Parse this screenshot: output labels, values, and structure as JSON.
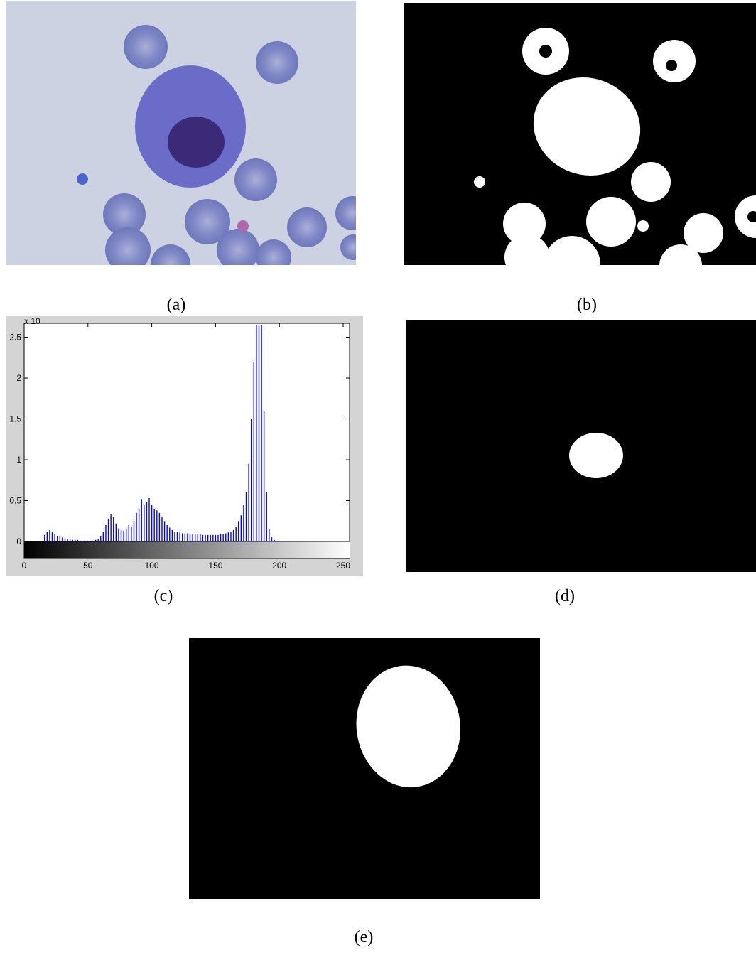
{
  "panels": [
    {
      "label": "(a)"
    },
    {
      "label": "(b)"
    },
    {
      "label": "(c)"
    },
    {
      "label": "(d)"
    },
    {
      "label": "(e)"
    }
  ],
  "chart_data": {
    "type": "histogram-stem",
    "color": "#0000ff",
    "y_exponent_label": "x 10",
    "xlim": [
      0,
      255
    ],
    "ylim": [
      -0.2,
      2.67
    ],
    "xticks": [
      0,
      50,
      100,
      150,
      200,
      250
    ],
    "yticks": [
      0,
      0.5,
      1,
      1.5,
      2,
      2.5
    ],
    "x": [
      16,
      18,
      20,
      22,
      24,
      26,
      28,
      30,
      32,
      34,
      36,
      38,
      40,
      42,
      44,
      46,
      48,
      50,
      52,
      54,
      56,
      58,
      60,
      62,
      64,
      66,
      68,
      70,
      72,
      74,
      76,
      78,
      80,
      82,
      84,
      86,
      88,
      90,
      92,
      94,
      96,
      98,
      100,
      102,
      104,
      106,
      108,
      110,
      112,
      114,
      116,
      118,
      120,
      122,
      124,
      126,
      128,
      130,
      132,
      134,
      136,
      138,
      140,
      142,
      144,
      146,
      148,
      150,
      152,
      154,
      156,
      158,
      160,
      162,
      164,
      166,
      168,
      170,
      172,
      174,
      176,
      178,
      180,
      182,
      184,
      186,
      188,
      190,
      192,
      194,
      196
    ],
    "values": [
      0.08,
      0.12,
      0.14,
      0.12,
      0.09,
      0.07,
      0.06,
      0.05,
      0.04,
      0.03,
      0.03,
      0.02,
      0.02,
      0.02,
      0.01,
      0.01,
      0.01,
      0.01,
      0.01,
      0.01,
      0.02,
      0.03,
      0.06,
      0.12,
      0.2,
      0.28,
      0.33,
      0.3,
      0.22,
      0.16,
      0.14,
      0.13,
      0.16,
      0.2,
      0.18,
      0.25,
      0.35,
      0.4,
      0.52,
      0.45,
      0.48,
      0.53,
      0.45,
      0.4,
      0.38,
      0.35,
      0.3,
      0.25,
      0.2,
      0.17,
      0.14,
      0.12,
      0.12,
      0.11,
      0.1,
      0.1,
      0.1,
      0.09,
      0.09,
      0.09,
      0.09,
      0.09,
      0.08,
      0.08,
      0.08,
      0.08,
      0.08,
      0.08,
      0.08,
      0.09,
      0.09,
      0.1,
      0.11,
      0.12,
      0.14,
      0.18,
      0.25,
      0.32,
      0.45,
      0.6,
      0.95,
      1.5,
      2.2,
      2.65,
      2.65,
      2.65,
      1.6,
      0.6,
      0.15,
      0.05,
      0.02
    ]
  }
}
